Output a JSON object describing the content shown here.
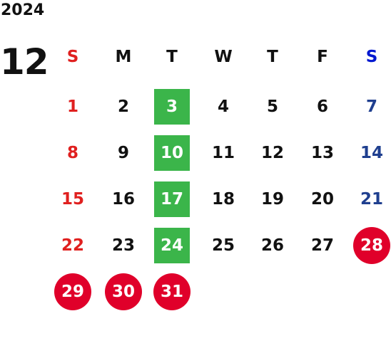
{
  "year": "2024",
  "month": "12",
  "weekdays": [
    "S",
    "M",
    "T",
    "W",
    "T",
    "F",
    "S"
  ],
  "weeks": [
    [
      "1",
      "2",
      {
        "text": "3",
        "style": "green-square"
      },
      "4",
      "5",
      "6",
      "7"
    ],
    [
      "8",
      "9",
      {
        "text": "10",
        "style": "green-square"
      },
      "11",
      "12",
      "13",
      "14"
    ],
    [
      "15",
      "16",
      {
        "text": "17",
        "style": "green-square"
      },
      "18",
      "19",
      "20",
      "21"
    ],
    [
      "22",
      "23",
      {
        "text": "24",
        "style": "green-square"
      },
      "25",
      "26",
      "27",
      {
        "text": "28",
        "style": "red-circle"
      }
    ],
    [
      {
        "text": "29",
        "style": "red-circle"
      },
      {
        "text": "30",
        "style": "red-circle"
      },
      {
        "text": "31",
        "style": "red-circle"
      }
    ]
  ]
}
